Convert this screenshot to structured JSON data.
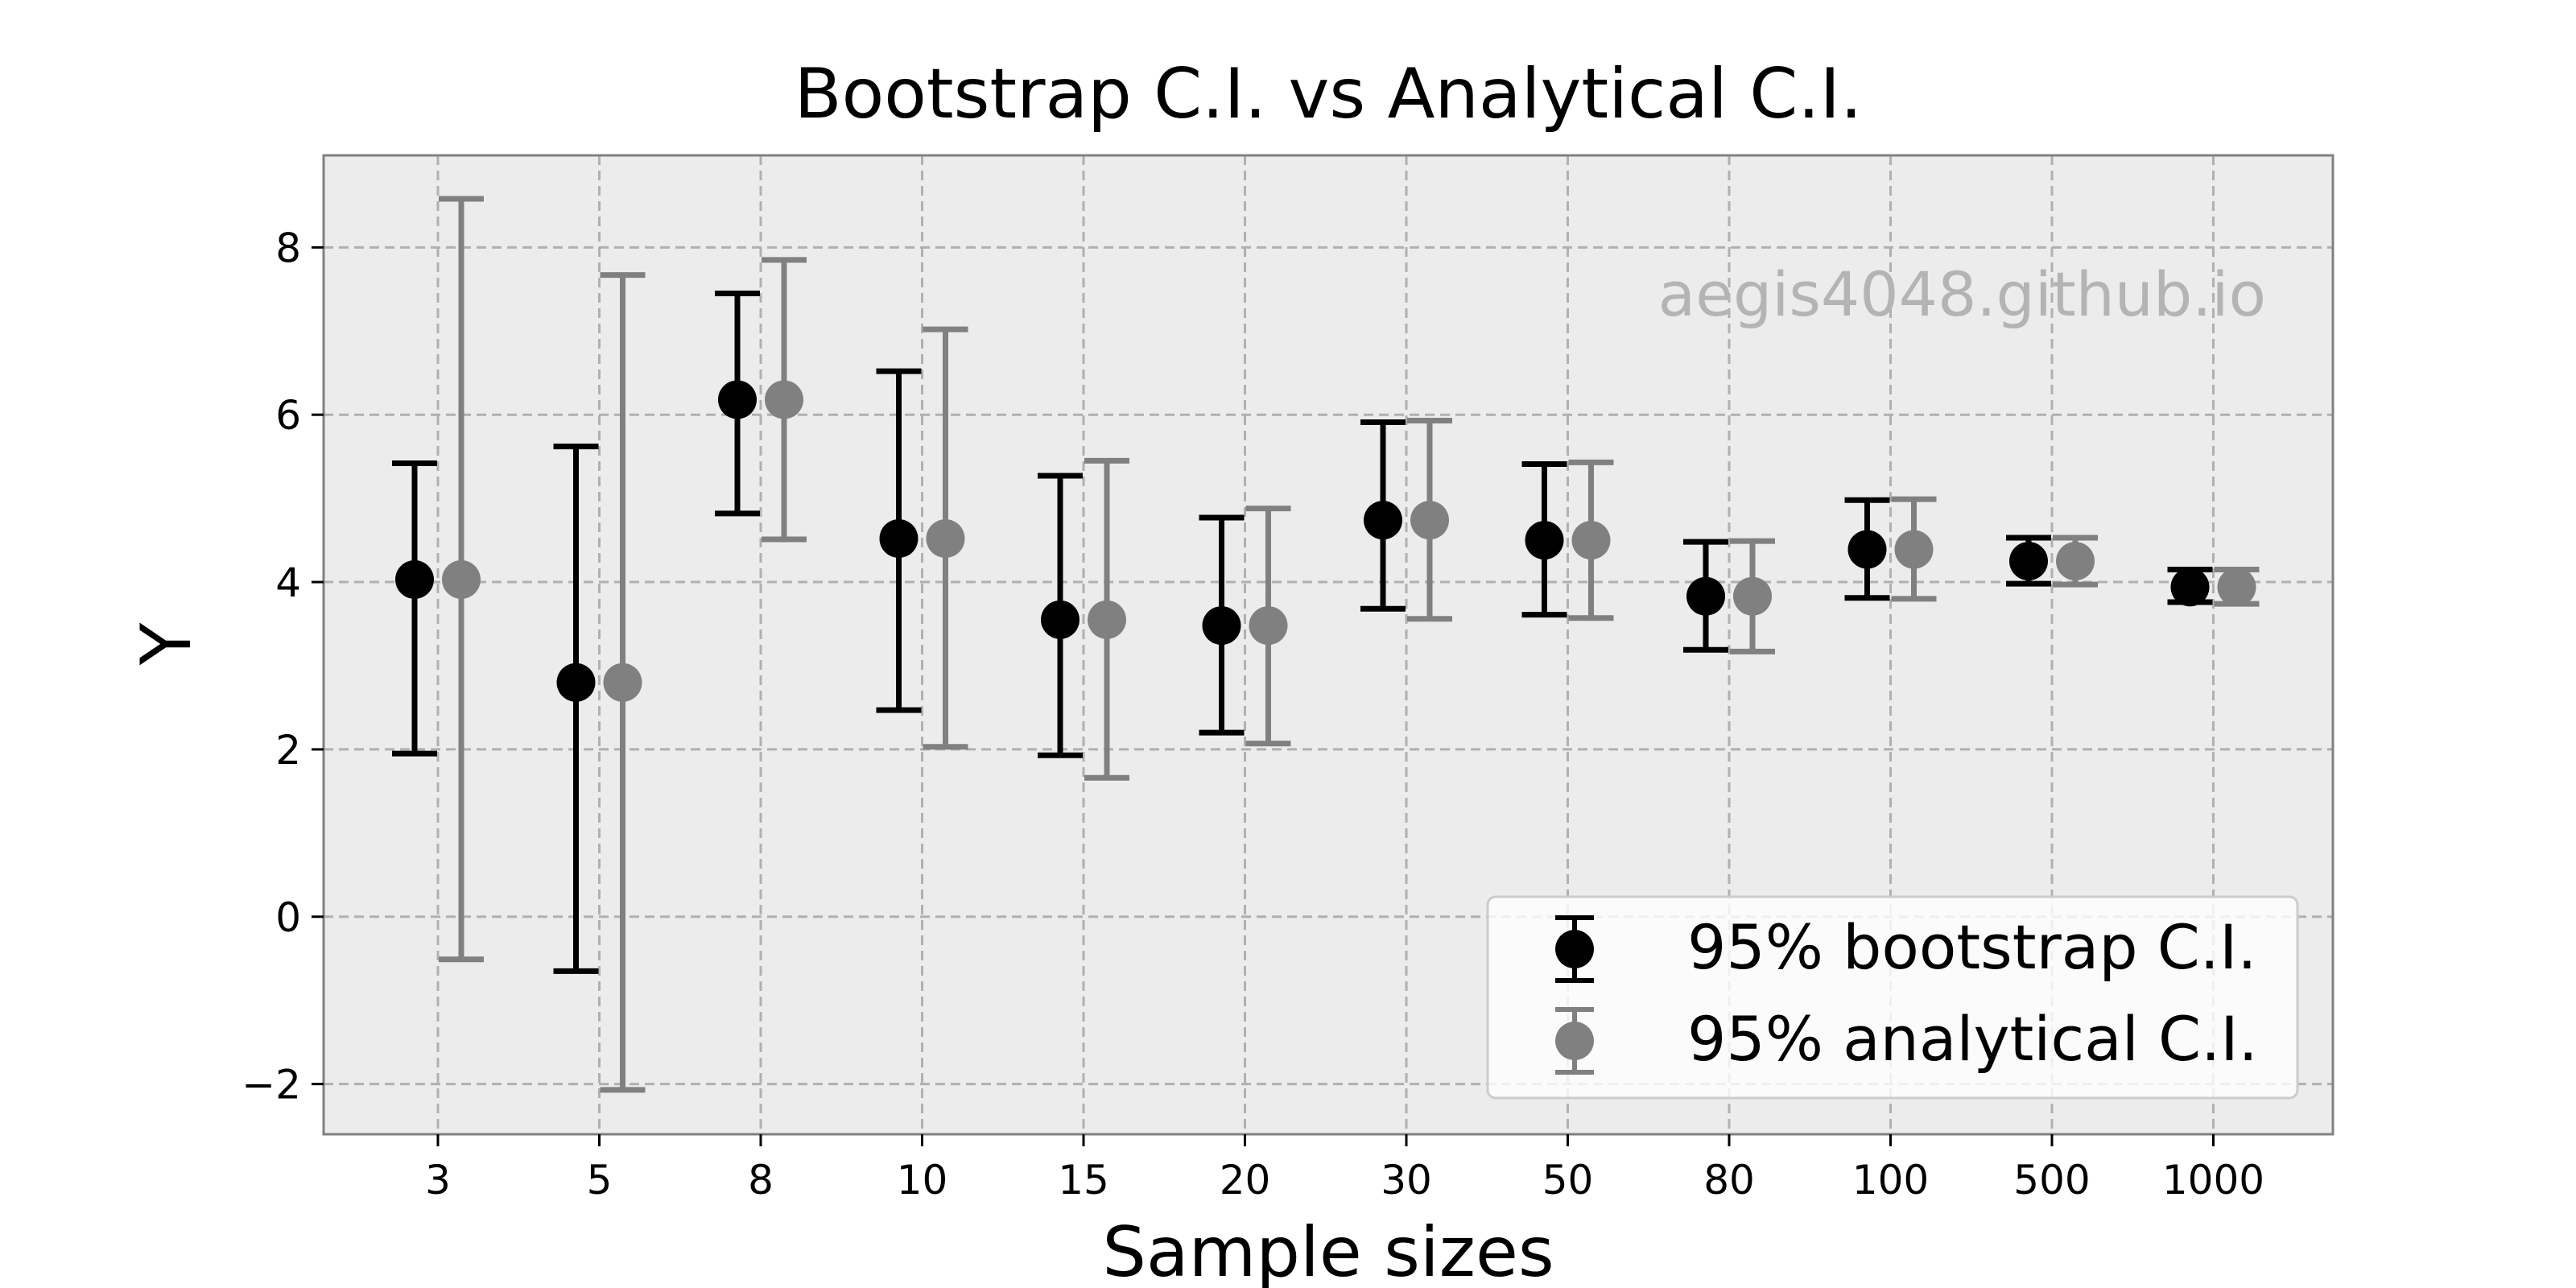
{
  "chart_data": {
    "type": "errorbar",
    "title": "Bootstrap C.I. vs Analytical C.I.",
    "xlabel": "Sample sizes",
    "ylabel": "Y",
    "categories": [
      "3",
      "5",
      "8",
      "10",
      "15",
      "20",
      "30",
      "50",
      "80",
      "100",
      "500",
      "1000"
    ],
    "yticks": [
      "8",
      "6",
      "4",
      "2",
      "0",
      "−2"
    ],
    "ylim": [
      -2.6,
      9.1
    ],
    "grid": true,
    "legend_position": "lower-right",
    "watermark": "aegis4048.github.io",
    "colors": {
      "background": "#ececec",
      "grid": "#b0b0b0",
      "bootstrap": "#000000",
      "analytical": "#808080",
      "watermark": "#b4b4b4"
    },
    "series": [
      {
        "name": "95% bootstrap C.I.",
        "mean": [
          4.03,
          2.8,
          6.18,
          4.52,
          3.55,
          3.48,
          4.74,
          4.5,
          3.83,
          4.39,
          4.25,
          3.94
        ],
        "lower": [
          1.95,
          -0.65,
          4.82,
          2.47,
          1.93,
          2.2,
          3.68,
          3.61,
          3.19,
          3.81,
          3.98,
          3.76
        ],
        "upper": [
          5.42,
          5.62,
          7.45,
          6.52,
          5.27,
          4.77,
          5.91,
          5.41,
          4.48,
          4.98,
          4.53,
          4.15
        ]
      },
      {
        "name": "95% analytical C.I.",
        "mean": [
          4.03,
          2.8,
          6.18,
          4.52,
          3.55,
          3.48,
          4.74,
          4.5,
          3.83,
          4.39,
          4.25,
          3.94
        ],
        "lower": [
          -0.51,
          -2.07,
          4.51,
          2.03,
          1.66,
          2.07,
          3.56,
          3.57,
          3.17,
          3.8,
          3.97,
          3.74
        ],
        "upper": [
          8.58,
          7.67,
          7.85,
          7.02,
          5.45,
          4.88,
          5.93,
          5.43,
          4.49,
          4.99,
          4.53,
          4.15
        ]
      }
    ]
  }
}
